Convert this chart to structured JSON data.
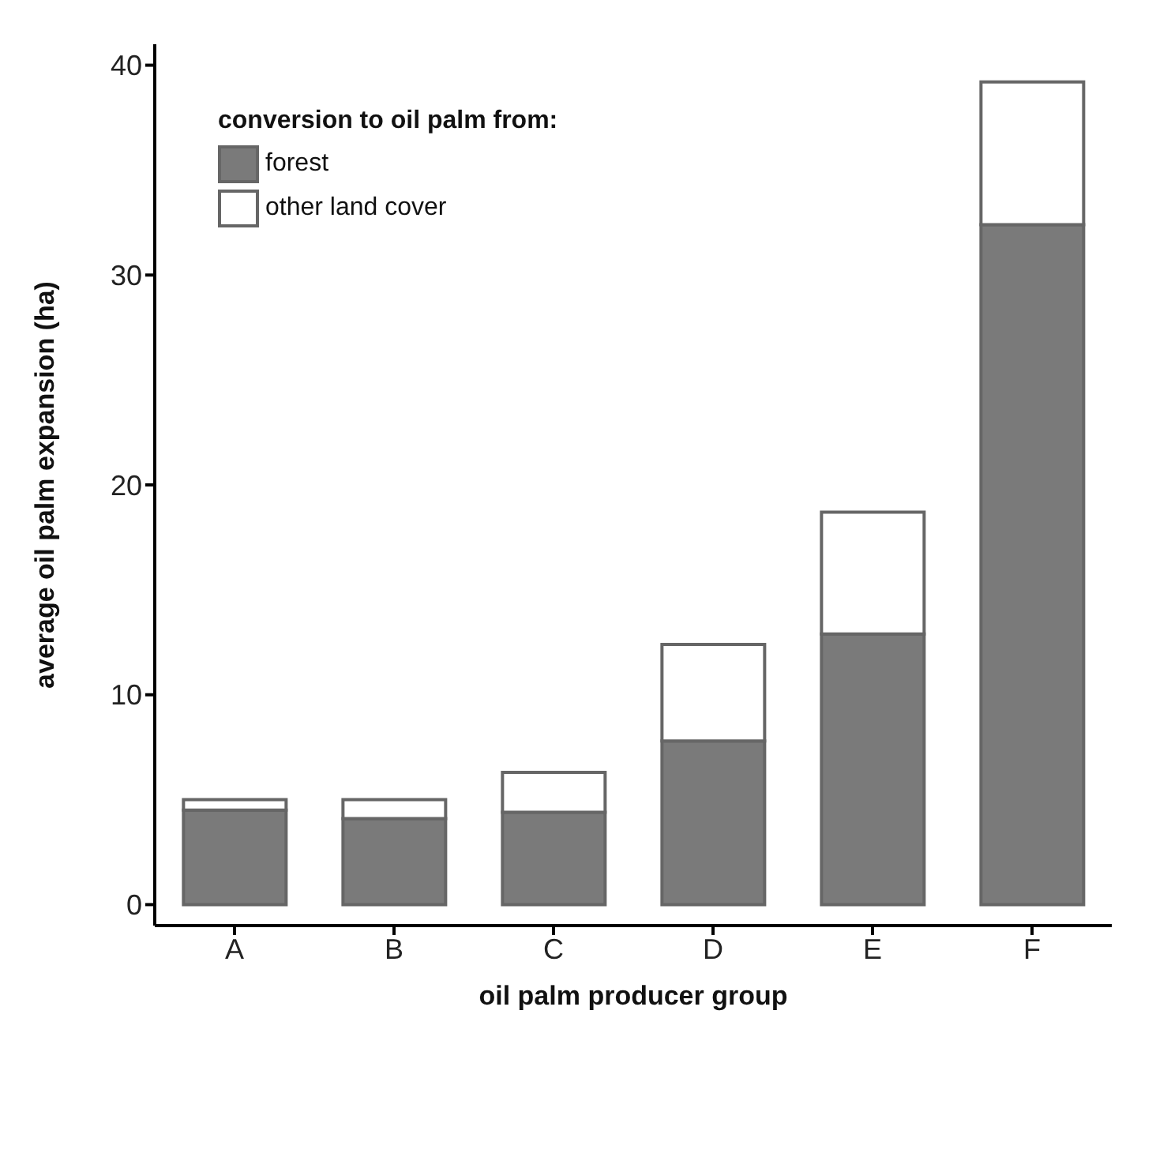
{
  "chart_data": {
    "type": "bar",
    "stacked": true,
    "xlabel": "oil palm producer group",
    "ylabel": "average oil palm expansion (ha)",
    "legend_title": "conversion to oil palm from:",
    "legend": "top left",
    "grid": false,
    "categories": [
      "A",
      "B",
      "C",
      "D",
      "E",
      "F"
    ],
    "series": [
      {
        "name": "forest",
        "color": "#7a7a7a",
        "values": [
          4.5,
          4.1,
          4.4,
          7.8,
          12.9,
          32.4
        ]
      },
      {
        "name": "other land cover",
        "color": "#ffffff",
        "values": [
          0.5,
          0.9,
          1.9,
          4.6,
          5.8,
          6.8
        ]
      }
    ],
    "ylim": [
      -1,
      41
    ],
    "yticks": [
      0,
      10,
      20,
      30,
      40
    ]
  }
}
